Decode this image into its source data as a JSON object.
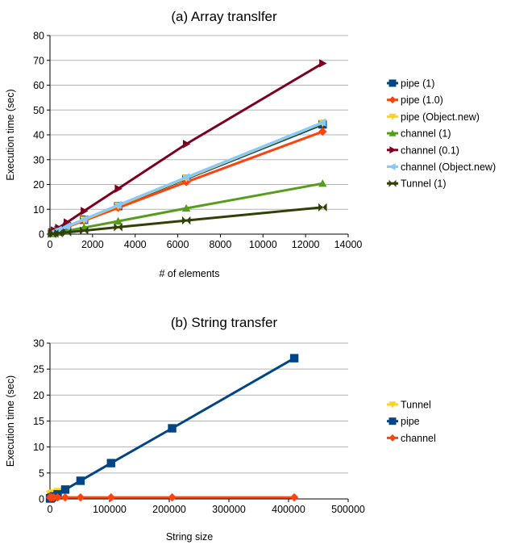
{
  "chart_data": [
    {
      "type": "line",
      "title": "(a) Array translfer",
      "xlabel": "# of elements",
      "ylabel": "Execution time (sec)",
      "xlim": [
        0,
        14000
      ],
      "ylim": [
        0,
        80
      ],
      "xticks": [
        "0",
        "2000",
        "4000",
        "6000",
        "8000",
        "10000",
        "12000",
        "14000"
      ],
      "yticks": [
        "0",
        "10",
        "20",
        "30",
        "40",
        "50",
        "60",
        "70",
        "80"
      ],
      "grid": "horizontal",
      "legend": "right",
      "series": [
        {
          "name": "pipe (1)",
          "color": "#004586",
          "marker": "square",
          "x": [
            100,
            200,
            400,
            800,
            1600,
            3200,
            6400,
            12800
          ],
          "y": [
            0.5,
            0.9,
            1.6,
            3.0,
            5.8,
            11.3,
            22.3,
            44.2
          ]
        },
        {
          "name": "pipe (1.0)",
          "color": "#ff420e",
          "marker": "diamond",
          "x": [
            100,
            200,
            400,
            800,
            1600,
            3200,
            6400,
            12800
          ],
          "y": [
            0.5,
            0.9,
            1.5,
            2.8,
            5.4,
            10.6,
            21.0,
            41.3
          ]
        },
        {
          "name": "pipe (Object.new)",
          "color": "#ffd320",
          "marker": "triangle-down",
          "x": [
            100,
            200,
            400,
            800,
            1600,
            3200,
            6400,
            12800
          ],
          "y": [
            0.5,
            1.0,
            1.6,
            3.0,
            5.8,
            11.5,
            22.6,
            44.8
          ]
        },
        {
          "name": "channel (1)",
          "color": "#579d1c",
          "marker": "triangle-up",
          "x": [
            100,
            200,
            400,
            800,
            1600,
            3200,
            6400,
            12800
          ],
          "y": [
            0.2,
            0.4,
            0.7,
            1.3,
            2.6,
            5.2,
            10.4,
            20.4
          ]
        },
        {
          "name": "channel (0.1)",
          "color": "#7e0021",
          "marker": "triangle-right",
          "x": [
            100,
            200,
            400,
            800,
            1600,
            3200,
            6400,
            12800
          ],
          "y": [
            0.8,
            1.5,
            2.5,
            4.7,
            9.3,
            18.3,
            36.3,
            68.8
          ]
        },
        {
          "name": "channel (Object.new)",
          "color": "#83caff",
          "marker": "triangle-left",
          "x": [
            100,
            200,
            400,
            800,
            1600,
            3200,
            6400,
            12800
          ],
          "y": [
            0.5,
            1.0,
            1.7,
            3.1,
            6.0,
            11.7,
            22.9,
            45.0
          ]
        },
        {
          "name": "Tunnel (1)",
          "color": "#314004",
          "marker": "bowtie",
          "x": [
            100,
            200,
            400,
            800,
            1600,
            3200,
            6400,
            12800
          ],
          "y": [
            0.1,
            0.2,
            0.4,
            0.7,
            1.4,
            2.8,
            5.5,
            10.8
          ]
        }
      ]
    },
    {
      "type": "line",
      "title": "(b) String transfer",
      "xlabel": "String size",
      "ylabel": "Execution time (sec)",
      "xlim": [
        0,
        500000
      ],
      "ylim": [
        0,
        30
      ],
      "xticks": [
        "0",
        "100000",
        "200000",
        "300000",
        "400000",
        "500000"
      ],
      "yticks": [
        "0",
        "5",
        "10",
        "15",
        "20",
        "25",
        "30"
      ],
      "grid": "horizontal",
      "legend": "right",
      "series": [
        {
          "name": "Tunnel",
          "color": "#ffd320",
          "marker": "triangle-down",
          "x": [
            100,
            200,
            400,
            800,
            1600,
            3200,
            6400,
            12800,
            25600
          ],
          "y": [
            0.9,
            0.9,
            0.9,
            0.9,
            1.0,
            1.1,
            1.2,
            1.5,
            2.0
          ]
        },
        {
          "name": "pipe",
          "color": "#004586",
          "marker": "square",
          "x": [
            100,
            200,
            400,
            800,
            1600,
            3200,
            6400,
            12800,
            25600,
            51200,
            102400,
            204800,
            409600
          ],
          "y": [
            0.1,
            0.1,
            0.1,
            0.1,
            0.2,
            0.3,
            0.5,
            0.9,
            1.8,
            3.5,
            6.9,
            13.6,
            27.1
          ]
        },
        {
          "name": "channel",
          "color": "#ff420e",
          "marker": "diamond",
          "x": [
            100,
            200,
            400,
            800,
            1600,
            3200,
            6400,
            12800,
            25600,
            51200,
            102400,
            204800,
            409600
          ],
          "y": [
            0.3,
            0.3,
            0.3,
            0.3,
            0.3,
            0.3,
            0.3,
            0.3,
            0.3,
            0.3,
            0.3,
            0.3,
            0.3
          ]
        }
      ]
    }
  ]
}
